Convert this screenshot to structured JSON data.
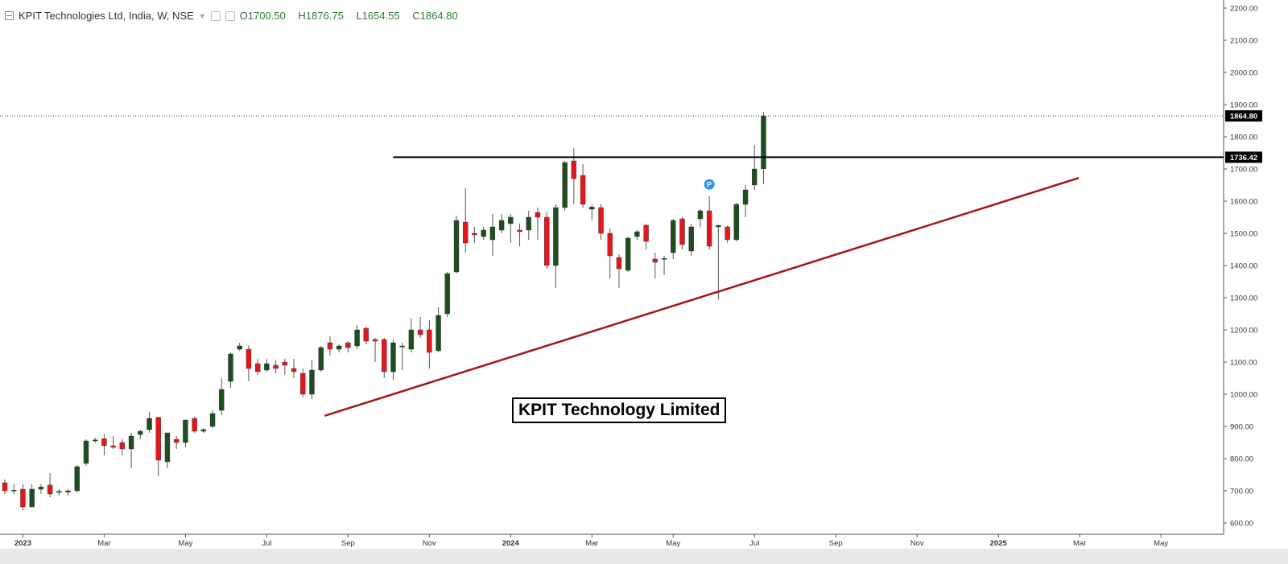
{
  "legend": {
    "symbol": "KPIT Technologies Ltd, India, W, NSE",
    "open_label": "O",
    "open": "1700.50",
    "high_label": "H",
    "high": "1876.75",
    "low_label": "L",
    "low": "1654.55",
    "close_label": "C",
    "close": "1864.80"
  },
  "annotation_title": "KPIT Technology Limited",
  "colors": {
    "up": "#1e4d1e",
    "down": "#e3161b",
    "trendline": "#a31515",
    "resistance": "#000000",
    "marker": "#2196f3"
  },
  "chart_data": {
    "type": "candlestick",
    "ylim": [
      580,
      2220
    ],
    "yticks": [
      "600.00",
      "700.00",
      "800.00",
      "900.00",
      "1000.00",
      "1100.00",
      "1200.00",
      "1300.00",
      "1400.00",
      "1500.00",
      "1600.00",
      "1700.00",
      "1800.00",
      "1900.00",
      "2000.00",
      "2100.00",
      "2200.00"
    ],
    "xticks": [
      {
        "label": "2023",
        "week": 2
      },
      {
        "label": "Mar",
        "week": 11
      },
      {
        "label": "May",
        "week": 20
      },
      {
        "label": "Jul",
        "week": 29
      },
      {
        "label": "Sep",
        "week": 38
      },
      {
        "label": "Nov",
        "week": 47
      },
      {
        "label": "2024",
        "week": 56
      },
      {
        "label": "Mar",
        "week": 65
      },
      {
        "label": "May",
        "week": 74
      },
      {
        "label": "Jul",
        "week": 83
      },
      {
        "label": "Sep",
        "week": 92
      },
      {
        "label": "Nov",
        "week": 101
      },
      {
        "label": "2025",
        "week": 110
      },
      {
        "label": "Mar",
        "week": 119
      },
      {
        "label": "May",
        "week": 128
      }
    ],
    "candles": [
      {
        "o": 725,
        "h": 735,
        "l": 690,
        "c": 700
      },
      {
        "o": 700,
        "h": 720,
        "l": 690,
        "c": 702
      },
      {
        "o": 705,
        "h": 720,
        "l": 640,
        "c": 650
      },
      {
        "o": 650,
        "h": 720,
        "l": 648,
        "c": 705
      },
      {
        "o": 705,
        "h": 720,
        "l": 690,
        "c": 712
      },
      {
        "o": 718,
        "h": 755,
        "l": 680,
        "c": 690
      },
      {
        "o": 695,
        "h": 705,
        "l": 685,
        "c": 698
      },
      {
        "o": 696,
        "h": 705,
        "l": 685,
        "c": 700
      },
      {
        "o": 700,
        "h": 780,
        "l": 695,
        "c": 775
      },
      {
        "o": 785,
        "h": 860,
        "l": 778,
        "c": 855
      },
      {
        "o": 855,
        "h": 865,
        "l": 848,
        "c": 858
      },
      {
        "o": 862,
        "h": 875,
        "l": 810,
        "c": 840
      },
      {
        "o": 840,
        "h": 870,
        "l": 830,
        "c": 835
      },
      {
        "o": 850,
        "h": 860,
        "l": 810,
        "c": 830
      },
      {
        "o": 830,
        "h": 880,
        "l": 770,
        "c": 870
      },
      {
        "o": 875,
        "h": 890,
        "l": 860,
        "c": 885
      },
      {
        "o": 890,
        "h": 945,
        "l": 880,
        "c": 925
      },
      {
        "o": 928,
        "h": 930,
        "l": 745,
        "c": 795
      },
      {
        "o": 790,
        "h": 880,
        "l": 770,
        "c": 880
      },
      {
        "o": 860,
        "h": 870,
        "l": 830,
        "c": 850
      },
      {
        "o": 850,
        "h": 915,
        "l": 835,
        "c": 920
      },
      {
        "o": 925,
        "h": 930,
        "l": 880,
        "c": 885
      },
      {
        "o": 885,
        "h": 895,
        "l": 880,
        "c": 890
      },
      {
        "o": 900,
        "h": 950,
        "l": 895,
        "c": 940
      },
      {
        "o": 950,
        "h": 1050,
        "l": 935,
        "c": 1015
      },
      {
        "o": 1040,
        "h": 1130,
        "l": 1020,
        "c": 1125
      },
      {
        "o": 1140,
        "h": 1160,
        "l": 1135,
        "c": 1150
      },
      {
        "o": 1140,
        "h": 1152,
        "l": 1040,
        "c": 1080
      },
      {
        "o": 1095,
        "h": 1110,
        "l": 1060,
        "c": 1070
      },
      {
        "o": 1075,
        "h": 1110,
        "l": 1070,
        "c": 1095
      },
      {
        "o": 1090,
        "h": 1105,
        "l": 1065,
        "c": 1080
      },
      {
        "o": 1100,
        "h": 1110,
        "l": 1060,
        "c": 1090
      },
      {
        "o": 1080,
        "h": 1110,
        "l": 1050,
        "c": 1070
      },
      {
        "o": 1065,
        "h": 1080,
        "l": 990,
        "c": 1000
      },
      {
        "o": 1000,
        "h": 1105,
        "l": 985,
        "c": 1075
      },
      {
        "o": 1075,
        "h": 1150,
        "l": 1070,
        "c": 1145
      },
      {
        "o": 1160,
        "h": 1180,
        "l": 1120,
        "c": 1140
      },
      {
        "o": 1140,
        "h": 1155,
        "l": 1130,
        "c": 1150
      },
      {
        "o": 1160,
        "h": 1165,
        "l": 1130,
        "c": 1145
      },
      {
        "o": 1150,
        "h": 1215,
        "l": 1140,
        "c": 1200
      },
      {
        "o": 1205,
        "h": 1210,
        "l": 1155,
        "c": 1165
      },
      {
        "o": 1170,
        "h": 1175,
        "l": 1100,
        "c": 1165
      },
      {
        "o": 1170,
        "h": 1175,
        "l": 1050,
        "c": 1070
      },
      {
        "o": 1070,
        "h": 1170,
        "l": 1045,
        "c": 1160
      },
      {
        "o": 1150,
        "h": 1160,
        "l": 1075,
        "c": 1150
      },
      {
        "o": 1140,
        "h": 1235,
        "l": 1130,
        "c": 1200
      },
      {
        "o": 1200,
        "h": 1240,
        "l": 1175,
        "c": 1185
      },
      {
        "o": 1200,
        "h": 1230,
        "l": 1080,
        "c": 1130
      },
      {
        "o": 1135,
        "h": 1270,
        "l": 1130,
        "c": 1245
      },
      {
        "o": 1250,
        "h": 1380,
        "l": 1240,
        "c": 1375
      },
      {
        "o": 1380,
        "h": 1555,
        "l": 1375,
        "c": 1540
      },
      {
        "o": 1535,
        "h": 1640,
        "l": 1440,
        "c": 1470
      },
      {
        "o": 1500,
        "h": 1520,
        "l": 1470,
        "c": 1495
      },
      {
        "o": 1490,
        "h": 1520,
        "l": 1480,
        "c": 1510
      },
      {
        "o": 1480,
        "h": 1560,
        "l": 1430,
        "c": 1520
      },
      {
        "o": 1510,
        "h": 1560,
        "l": 1500,
        "c": 1540
      },
      {
        "o": 1530,
        "h": 1560,
        "l": 1470,
        "c": 1550
      },
      {
        "o": 1510,
        "h": 1530,
        "l": 1460,
        "c": 1505
      },
      {
        "o": 1510,
        "h": 1570,
        "l": 1480,
        "c": 1550
      },
      {
        "o": 1565,
        "h": 1580,
        "l": 1480,
        "c": 1550
      },
      {
        "o": 1550,
        "h": 1565,
        "l": 1390,
        "c": 1400
      },
      {
        "o": 1400,
        "h": 1590,
        "l": 1330,
        "c": 1580
      },
      {
        "o": 1580,
        "h": 1725,
        "l": 1570,
        "c": 1720
      },
      {
        "o": 1725,
        "h": 1765,
        "l": 1590,
        "c": 1670
      },
      {
        "o": 1680,
        "h": 1715,
        "l": 1580,
        "c": 1590
      },
      {
        "o": 1575,
        "h": 1590,
        "l": 1540,
        "c": 1582
      },
      {
        "o": 1580,
        "h": 1590,
        "l": 1480,
        "c": 1500
      },
      {
        "o": 1500,
        "h": 1515,
        "l": 1360,
        "c": 1430
      },
      {
        "o": 1425,
        "h": 1435,
        "l": 1330,
        "c": 1390
      },
      {
        "o": 1385,
        "h": 1490,
        "l": 1380,
        "c": 1485
      },
      {
        "o": 1490,
        "h": 1510,
        "l": 1480,
        "c": 1505
      },
      {
        "o": 1525,
        "h": 1530,
        "l": 1450,
        "c": 1475
      },
      {
        "o": 1420,
        "h": 1440,
        "l": 1360,
        "c": 1410
      },
      {
        "o": 1420,
        "h": 1430,
        "l": 1370,
        "c": 1422
      },
      {
        "o": 1440,
        "h": 1545,
        "l": 1420,
        "c": 1540
      },
      {
        "o": 1545,
        "h": 1550,
        "l": 1450,
        "c": 1465
      },
      {
        "o": 1445,
        "h": 1530,
        "l": 1430,
        "c": 1520
      },
      {
        "o": 1545,
        "h": 1575,
        "l": 1520,
        "c": 1570
      },
      {
        "o": 1570,
        "h": 1615,
        "l": 1450,
        "c": 1460
      },
      {
        "o": 1520,
        "h": 1525,
        "l": 1295,
        "c": 1525
      },
      {
        "o": 1520,
        "h": 1525,
        "l": 1470,
        "c": 1480
      },
      {
        "o": 1480,
        "h": 1595,
        "l": 1475,
        "c": 1590
      },
      {
        "o": 1590,
        "h": 1650,
        "l": 1550,
        "c": 1635
      },
      {
        "o": 1650,
        "h": 1775,
        "l": 1635,
        "c": 1700
      },
      {
        "o": 1700.5,
        "h": 1876.75,
        "l": 1654.55,
        "c": 1864.8
      }
    ],
    "price_labels": [
      {
        "value": 1864.8,
        "text": "1864.80"
      },
      {
        "value": 1736.42,
        "text": "1736.42"
      }
    ],
    "lines": {
      "resistance": {
        "value": 1736.42,
        "from_week": 43,
        "to_week": 150
      },
      "trendline": {
        "from": {
          "week": 35.4,
          "value": 933
        },
        "to": {
          "week": 118.9,
          "value": 1672
        }
      },
      "dotted_close": {
        "value": 1864.8
      }
    },
    "marker": {
      "week": 78,
      "value": 1652,
      "label": "P"
    }
  }
}
